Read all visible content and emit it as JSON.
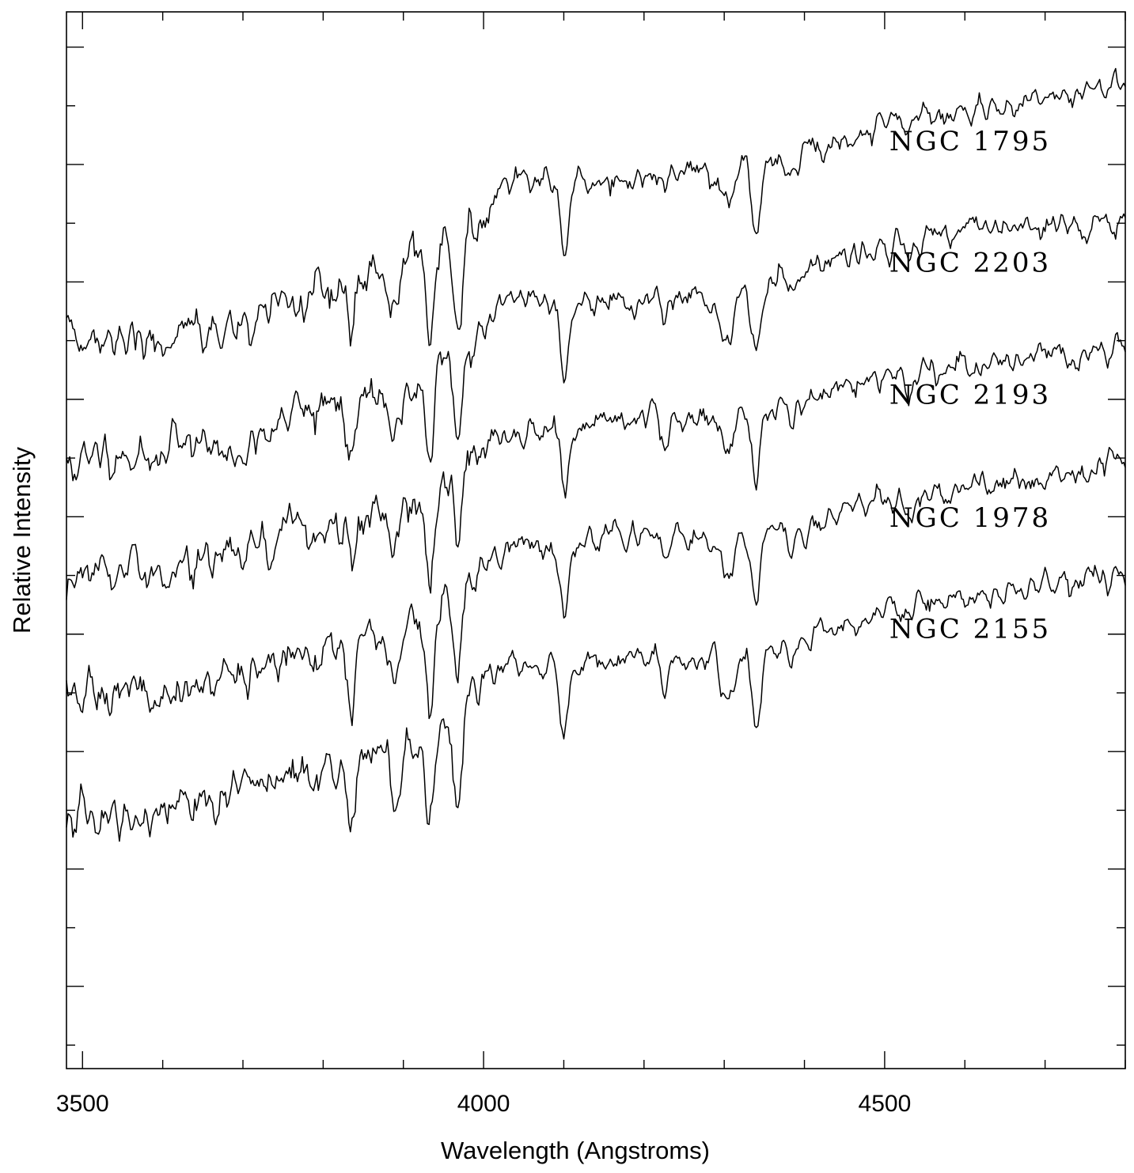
{
  "chart_data": {
    "type": "line",
    "title": "",
    "xlabel": "Wavelength (Angstroms)",
    "ylabel": "Relative Intensity",
    "xlim": [
      3480,
      4800
    ],
    "x_ticks_labeled": [
      "3500",
      "4000",
      "4500"
    ],
    "x_major": [
      3500,
      4000,
      4500
    ],
    "x_minor_step": 100,
    "y_tick_labels": "none",
    "grid": false,
    "legend": "inline labels at right",
    "series": [
      {
        "name": "NGC 1795",
        "continuum": [
          [
            3480,
            6.52
          ],
          [
            3600,
            6.52
          ],
          [
            3700,
            6.64
          ],
          [
            3800,
            6.9
          ],
          [
            3900,
            7.18
          ],
          [
            4000,
            7.55
          ],
          [
            4030,
            7.88
          ],
          [
            4100,
            7.82
          ],
          [
            4200,
            7.9
          ],
          [
            4300,
            7.96
          ],
          [
            4400,
            8.12
          ],
          [
            4500,
            8.36
          ],
          [
            4600,
            8.46
          ],
          [
            4700,
            8.56
          ],
          [
            4800,
            8.66
          ]
        ]
      },
      {
        "name": "NGC 2203",
        "continuum": [
          [
            3480,
            5.45
          ],
          [
            3600,
            5.56
          ],
          [
            3700,
            5.64
          ],
          [
            3800,
            5.93
          ],
          [
            3900,
            6.12
          ],
          [
            4000,
            6.55
          ],
          [
            4030,
            6.82
          ],
          [
            4100,
            6.82
          ],
          [
            4200,
            6.86
          ],
          [
            4300,
            6.86
          ],
          [
            4400,
            7.1
          ],
          [
            4500,
            7.33
          ],
          [
            4600,
            7.42
          ],
          [
            4700,
            7.46
          ],
          [
            4800,
            7.5
          ]
        ]
      },
      {
        "name": "NGC 2193",
        "continuum": [
          [
            3480,
            4.5
          ],
          [
            3600,
            4.52
          ],
          [
            3700,
            4.72
          ],
          [
            3800,
            4.92
          ],
          [
            3900,
            5.12
          ],
          [
            4000,
            5.58
          ],
          [
            4030,
            5.72
          ],
          [
            4100,
            5.76
          ],
          [
            4200,
            5.86
          ],
          [
            4300,
            5.84
          ],
          [
            4400,
            6.0
          ],
          [
            4500,
            6.21
          ],
          [
            4600,
            6.28
          ],
          [
            4700,
            6.36
          ],
          [
            4800,
            6.45
          ]
        ]
      },
      {
        "name": "NGC 1978",
        "continuum": [
          [
            3480,
            3.48
          ],
          [
            3600,
            3.52
          ],
          [
            3700,
            3.68
          ],
          [
            3800,
            3.86
          ],
          [
            3900,
            4.02
          ],
          [
            4000,
            4.56
          ],
          [
            4030,
            4.72
          ],
          [
            4100,
            4.78
          ],
          [
            4200,
            4.84
          ],
          [
            4300,
            4.8
          ],
          [
            4400,
            4.96
          ],
          [
            4500,
            5.16
          ],
          [
            4600,
            5.24
          ],
          [
            4700,
            5.32
          ],
          [
            4800,
            5.5
          ]
        ]
      },
      {
        "name": "NGC 2155",
        "continuum": [
          [
            3480,
            2.4
          ],
          [
            3600,
            2.52
          ],
          [
            3700,
            2.68
          ],
          [
            3800,
            2.86
          ],
          [
            3900,
            3.04
          ],
          [
            4000,
            3.6
          ],
          [
            4030,
            3.74
          ],
          [
            4100,
            3.74
          ],
          [
            4200,
            3.8
          ],
          [
            4300,
            3.76
          ],
          [
            4400,
            3.98
          ],
          [
            4500,
            4.2
          ],
          [
            4600,
            4.32
          ],
          [
            4700,
            4.4
          ],
          [
            4800,
            4.5
          ]
        ]
      }
    ],
    "absorption_lines": [
      {
        "x": 3835,
        "depth": 0.45,
        "width": 5
      },
      {
        "x": 3889,
        "depth": 0.45,
        "width": 5
      },
      {
        "x": 3933,
        "depth": 0.85,
        "width": 5
      },
      {
        "x": 3968,
        "depth": 0.85,
        "width": 5
      },
      {
        "x": 4101,
        "depth": 0.6,
        "width": 5
      },
      {
        "x": 4226,
        "depth": 0.25,
        "width": 4
      },
      {
        "x": 4304,
        "depth": 0.35,
        "width": 8
      },
      {
        "x": 4340,
        "depth": 0.65,
        "width": 5
      },
      {
        "x": 4384,
        "depth": 0.2,
        "width": 4
      },
      {
        "x": 4531,
        "depth": 0.15,
        "width": 5
      }
    ]
  }
}
